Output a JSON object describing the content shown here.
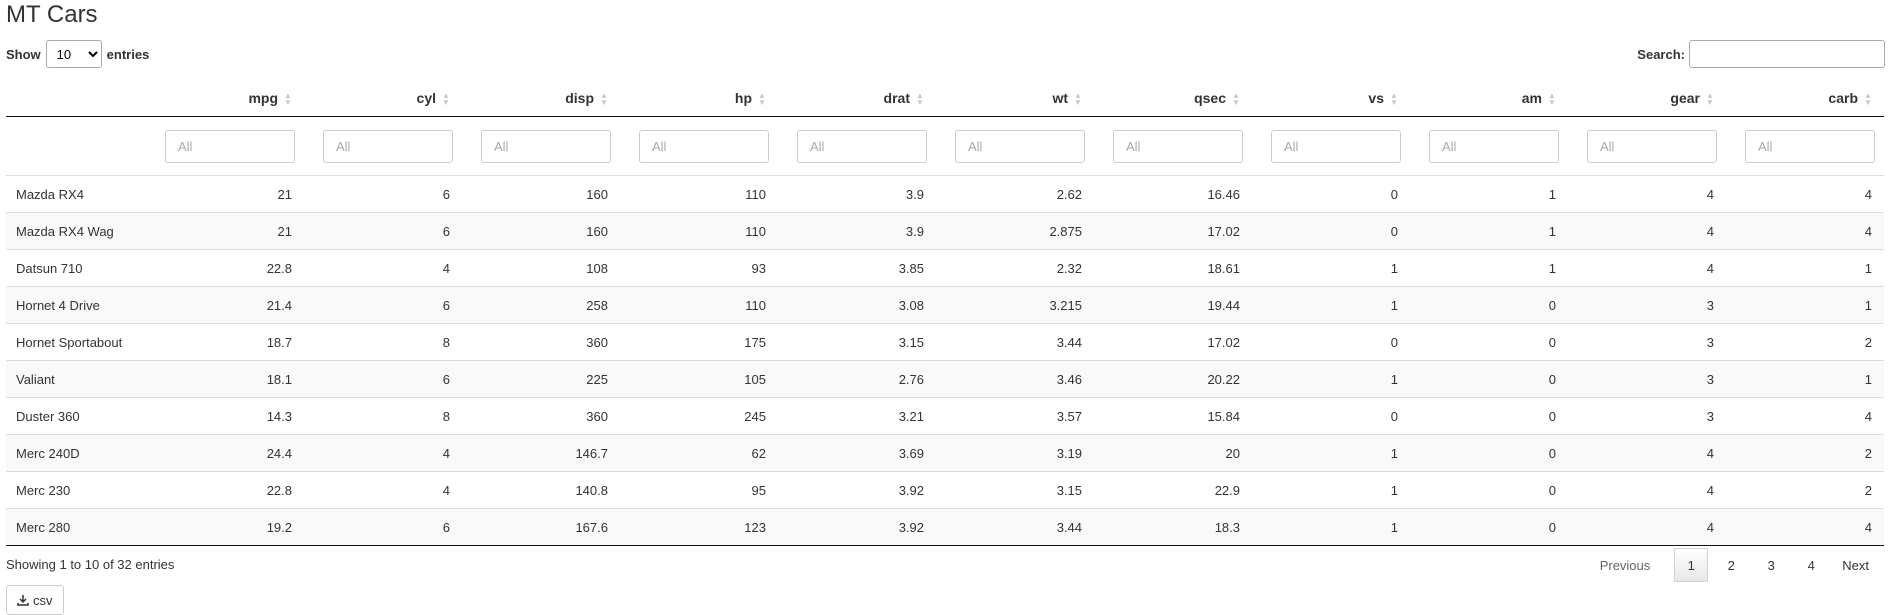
{
  "page": {
    "title": "MT Cars"
  },
  "length": {
    "show_label": "Show",
    "entries_label": "entries",
    "selected": "10"
  },
  "search": {
    "label": "Search:",
    "value": ""
  },
  "table": {
    "columns": [
      "",
      "mpg",
      "cyl",
      "disp",
      "hp",
      "drat",
      "wt",
      "qsec",
      "vs",
      "am",
      "gear",
      "carb"
    ],
    "filter_placeholder": "All",
    "rows": [
      [
        "Mazda RX4",
        "21",
        "6",
        "160",
        "110",
        "3.9",
        "2.62",
        "16.46",
        "0",
        "1",
        "4",
        "4"
      ],
      [
        "Mazda RX4 Wag",
        "21",
        "6",
        "160",
        "110",
        "3.9",
        "2.875",
        "17.02",
        "0",
        "1",
        "4",
        "4"
      ],
      [
        "Datsun 710",
        "22.8",
        "4",
        "108",
        "93",
        "3.85",
        "2.32",
        "18.61",
        "1",
        "1",
        "4",
        "1"
      ],
      [
        "Hornet 4 Drive",
        "21.4",
        "6",
        "258",
        "110",
        "3.08",
        "3.215",
        "19.44",
        "1",
        "0",
        "3",
        "1"
      ],
      [
        "Hornet Sportabout",
        "18.7",
        "8",
        "360",
        "175",
        "3.15",
        "3.44",
        "17.02",
        "0",
        "0",
        "3",
        "2"
      ],
      [
        "Valiant",
        "18.1",
        "6",
        "225",
        "105",
        "2.76",
        "3.46",
        "20.22",
        "1",
        "0",
        "3",
        "1"
      ],
      [
        "Duster 360",
        "14.3",
        "8",
        "360",
        "245",
        "3.21",
        "3.57",
        "15.84",
        "0",
        "0",
        "3",
        "4"
      ],
      [
        "Merc 240D",
        "24.4",
        "4",
        "146.7",
        "62",
        "3.69",
        "3.19",
        "20",
        "1",
        "0",
        "4",
        "2"
      ],
      [
        "Merc 230",
        "22.8",
        "4",
        "140.8",
        "95",
        "3.92",
        "3.15",
        "22.9",
        "1",
        "0",
        "4",
        "2"
      ],
      [
        "Merc 280",
        "19.2",
        "6",
        "167.6",
        "123",
        "3.92",
        "3.44",
        "18.3",
        "1",
        "0",
        "4",
        "4"
      ]
    ]
  },
  "info": "Showing 1 to 10 of 32 entries",
  "pagination": {
    "previous": "Previous",
    "pages": [
      "1",
      "2",
      "3",
      "4"
    ],
    "current": "1",
    "next": "Next"
  },
  "buttons": {
    "csv": "csv"
  },
  "icons": {
    "sort": "sort-both-icon",
    "download": "download-icon"
  }
}
